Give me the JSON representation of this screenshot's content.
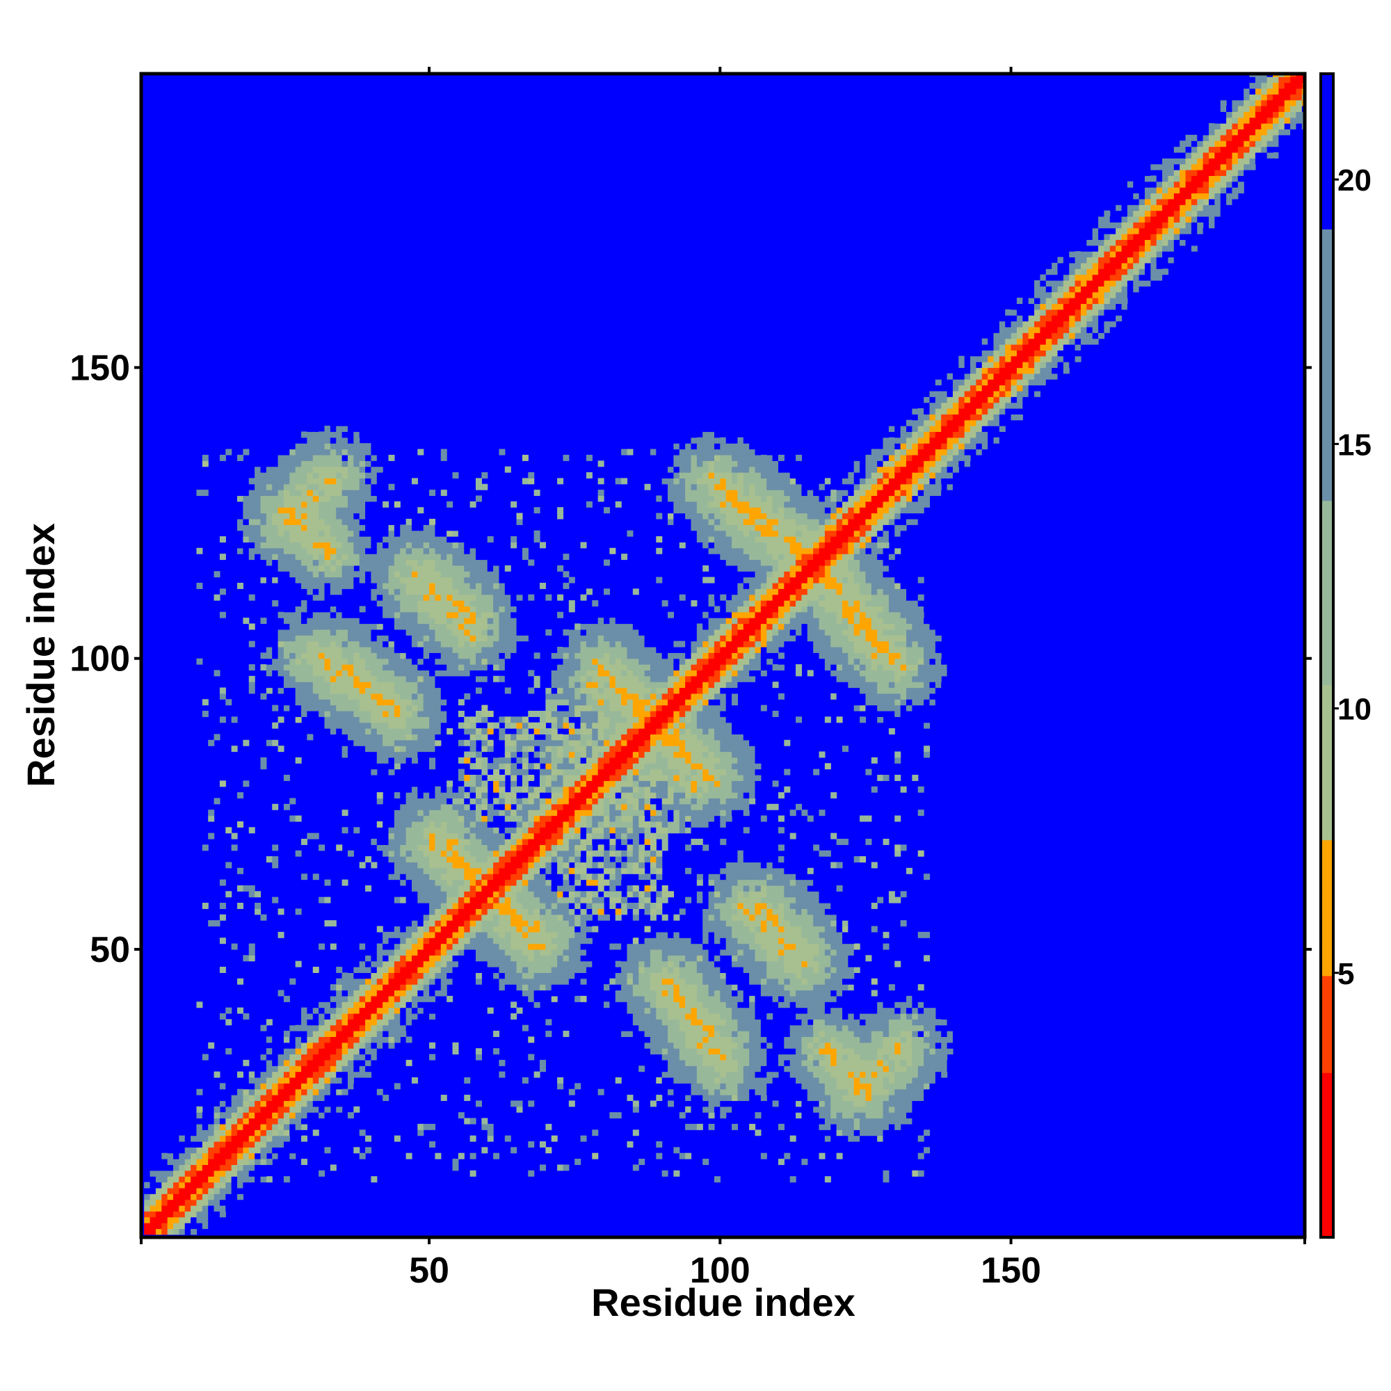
{
  "chart_data": {
    "type": "heatmap",
    "title": "",
    "xlabel": "Residue index",
    "ylabel": "Residue index",
    "xlim": [
      1,
      200
    ],
    "ylim": [
      1,
      200
    ],
    "x_ticks": [
      50,
      100,
      150
    ],
    "y_ticks": [
      50,
      100,
      150
    ],
    "colorbar": {
      "ticks": [
        5,
        10,
        15,
        20
      ],
      "range": [
        0,
        22
      ],
      "colors": {
        "red": "#ff0000",
        "orange": "#ffa500",
        "light_green": "#a8c090",
        "steel_blue": "#6b8fa8",
        "blue": "#0000ff"
      }
    },
    "symmetric": true,
    "value_meaning": "matrix values per colorbar; diagonal minimum (red), background maximum (blue)",
    "diagonal_value": 0,
    "background_value": 22,
    "contact_features": [
      {
        "type": "antiparallel",
        "x": [
          25,
          32
        ],
        "y": [
          125,
          118
        ],
        "value": 5
      },
      {
        "type": "antiparallel",
        "x": [
          30,
          44
        ],
        "y": [
          100,
          90
        ],
        "value": 5
      },
      {
        "type": "antiparallel",
        "x": [
          47,
          57
        ],
        "y": [
          114,
          104
        ],
        "value": 5
      },
      {
        "type": "antiparallel",
        "x": [
          51,
          68
        ],
        "y": [
          69,
          50
        ],
        "value": 5
      },
      {
        "type": "antiparallel",
        "x": [
          79,
          97
        ],
        "y": [
          98,
          79
        ],
        "value": 5
      },
      {
        "type": "antiparallel",
        "x": [
          98,
          113
        ],
        "y": [
          130,
          116
        ],
        "value": 5
      },
      {
        "type": "antiparallel",
        "x": [
          117,
          128
        ],
        "y": [
          115,
          102
        ],
        "value": 5
      },
      {
        "type": "antiparallel",
        "x": [
          90,
          99
        ],
        "y": [
          44,
          33
        ],
        "value": 5
      },
      {
        "type": "antiparallel",
        "x": [
          106,
          114
        ],
        "y": [
          57,
          48
        ],
        "value": 5
      },
      {
        "type": "antiparallel",
        "x": [
          123,
          131
        ],
        "y": [
          25,
          33
        ],
        "value": 5
      },
      {
        "type": "cluster",
        "x": [
          55,
          80
        ],
        "y": [
          72,
          90
        ],
        "value": 7
      },
      {
        "type": "cluster",
        "x": [
          78,
          95
        ],
        "y": [
          70,
          82
        ],
        "value": 7
      }
    ]
  }
}
